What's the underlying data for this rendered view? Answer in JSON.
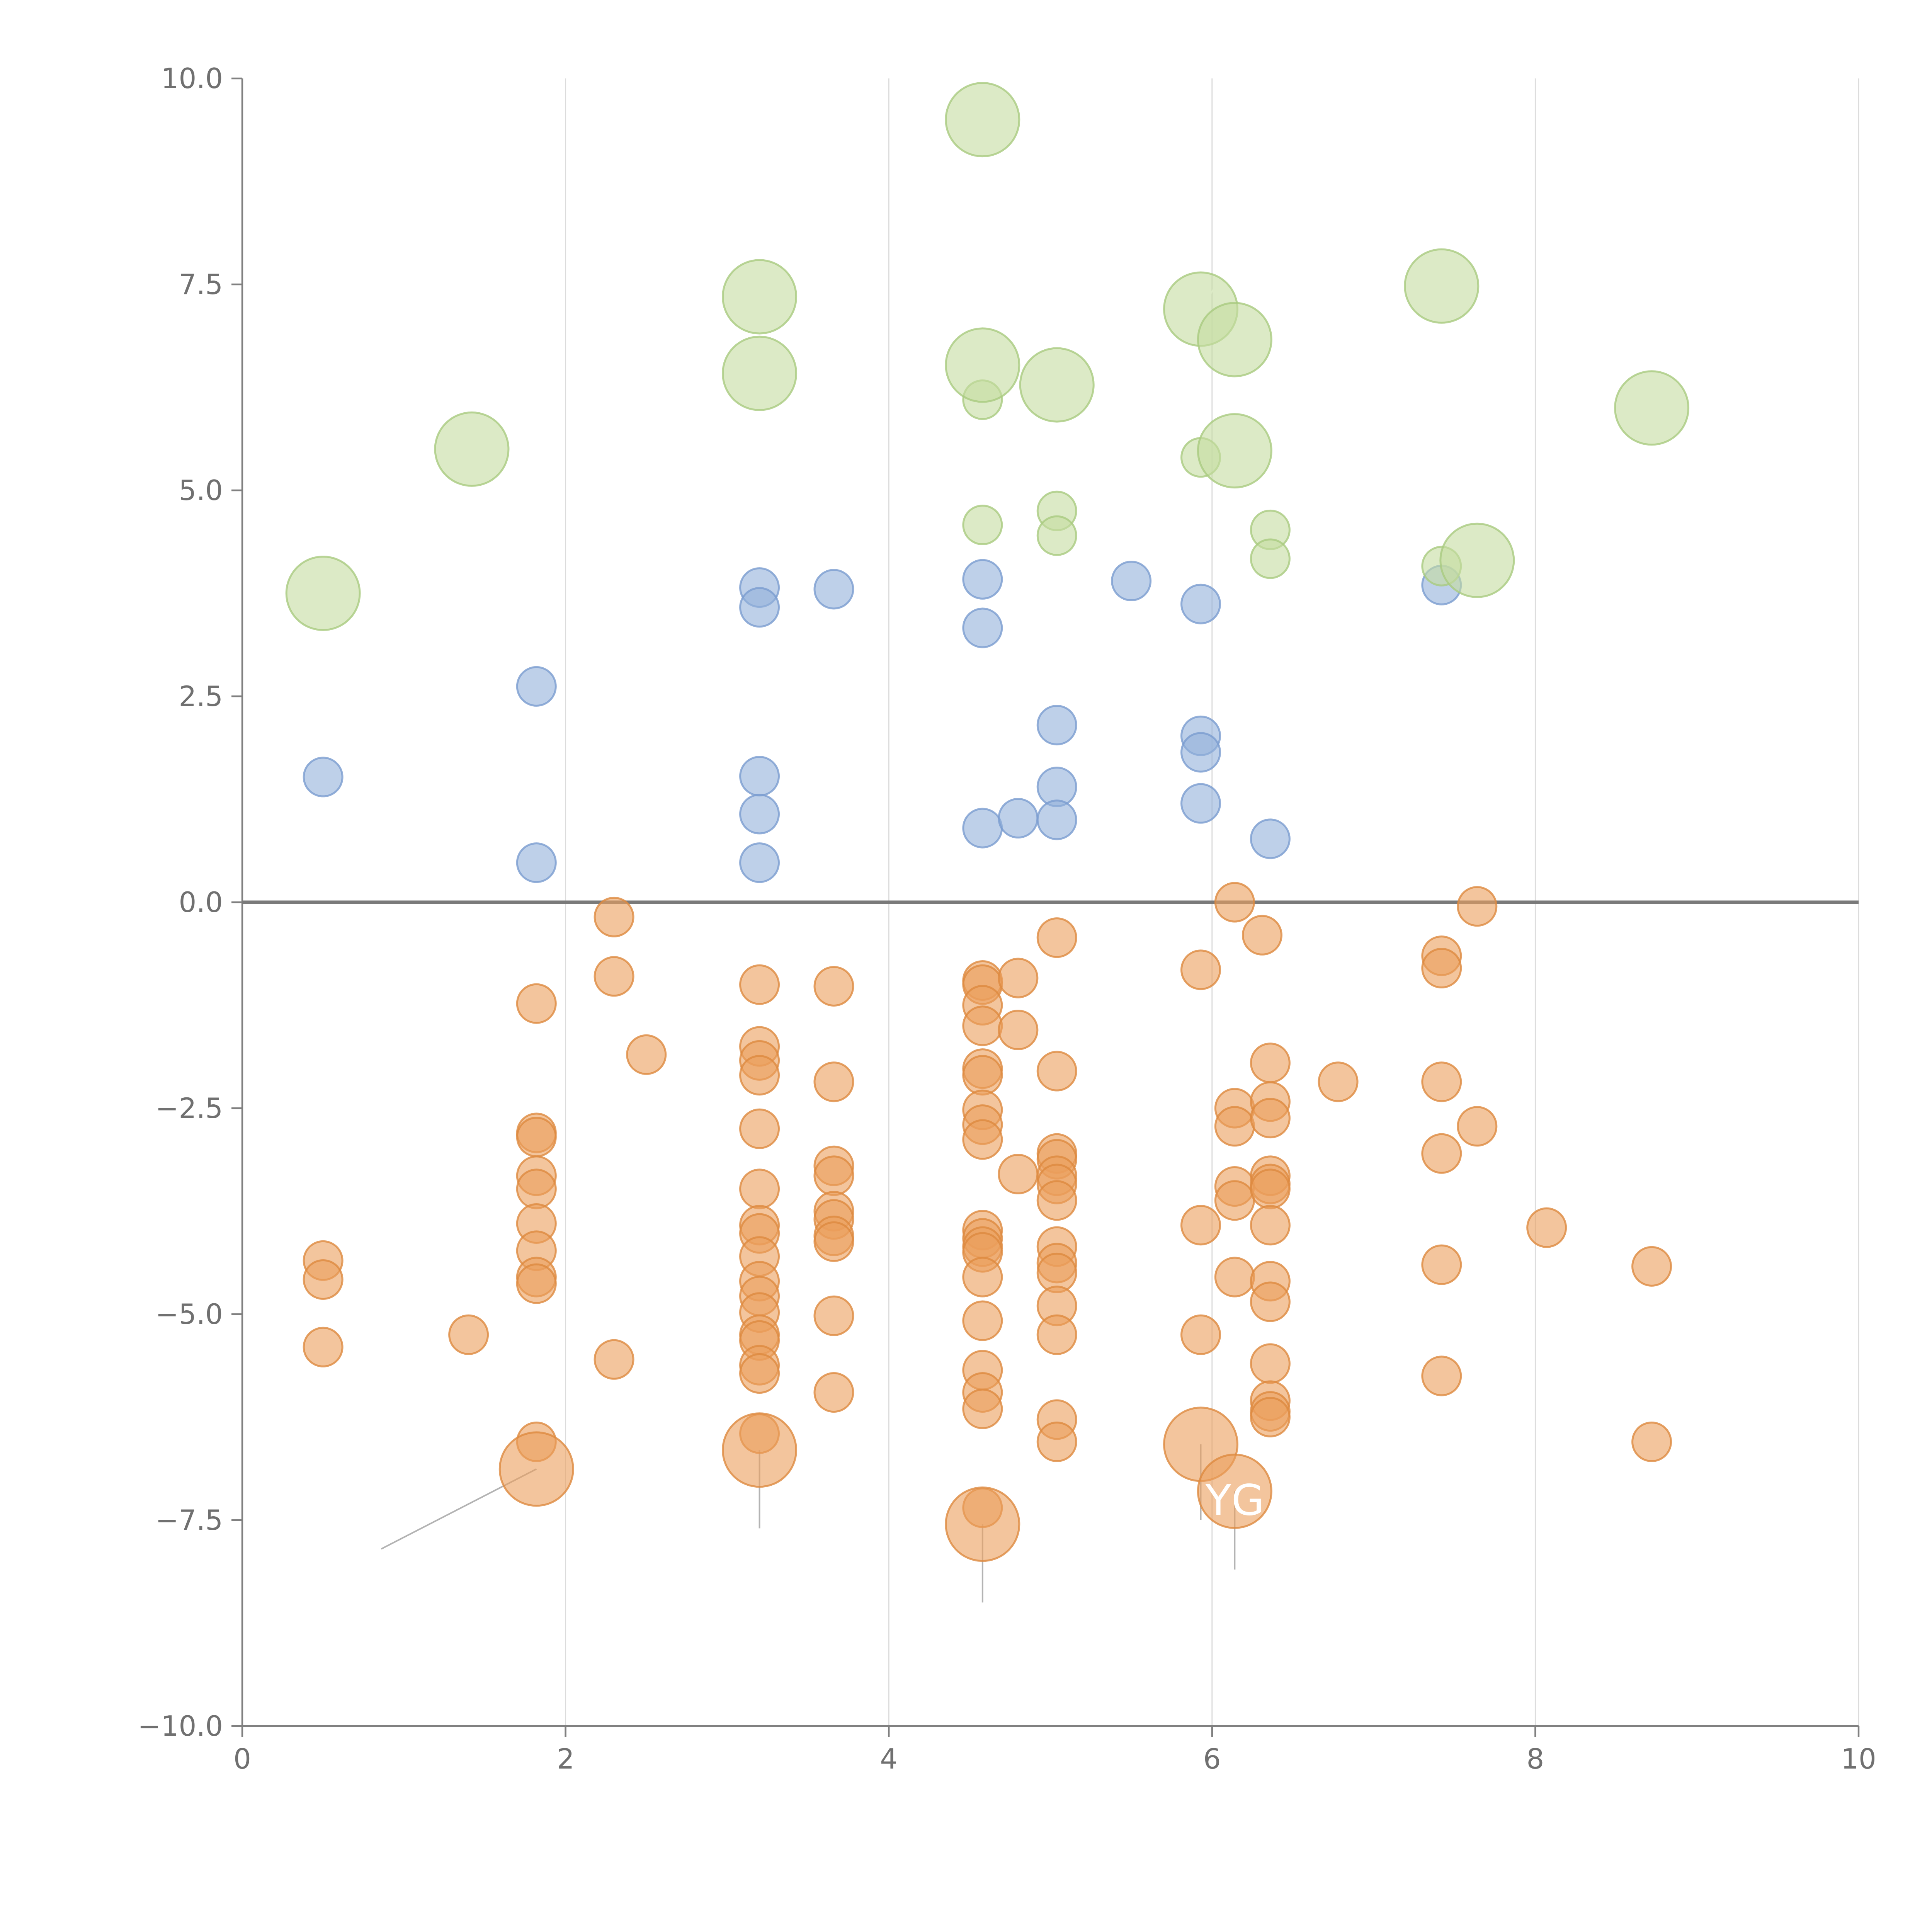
{
  "chart_data": {
    "type": "scatter",
    "title": "",
    "xlabel": "",
    "ylabel": "",
    "xlim": [
      0,
      10
    ],
    "ylim": [
      -10,
      10
    ],
    "grid": "vertical",
    "x_ticks": [
      0,
      2,
      4,
      6,
      8,
      10
    ],
    "y_ticks": [
      -10,
      -7.5,
      -5,
      -2.5,
      0,
      2.5,
      5,
      7.5,
      10
    ],
    "x_tick_labels": [
      "0",
      "2",
      "4",
      "6",
      "8",
      "10"
    ],
    "y_tick_labels": [
      "−10.0",
      "−7.5",
      "−5.0",
      "−2.5",
      "0.0",
      "2.5",
      "5.0",
      "7.5",
      "10.0"
    ],
    "reference_line_y": 0,
    "annotations": [
      {
        "text": "YG",
        "x": 6.15,
        "y": -7.25,
        "color": "#ffffff"
      }
    ],
    "series": [
      {
        "name": "orange",
        "color": "#eb9e5c",
        "stroke": "#dd8a40",
        "points": [
          [
            0.5,
            -4.35
          ],
          [
            0.5,
            -4.58
          ],
          [
            0.5,
            -5.4
          ],
          [
            1.4,
            -5.25
          ],
          [
            1.82,
            -1.23
          ],
          [
            1.82,
            -2.8
          ],
          [
            1.82,
            -2.85
          ],
          [
            1.82,
            -3.32
          ],
          [
            1.82,
            -3.48
          ],
          [
            1.82,
            -3.9
          ],
          [
            1.82,
            -4.23
          ],
          [
            1.82,
            -4.55
          ],
          [
            1.82,
            -4.63
          ],
          [
            1.82,
            -6.55
          ],
          [
            2.3,
            -0.18
          ],
          [
            2.3,
            -0.9
          ],
          [
            2.5,
            -1.85
          ],
          [
            2.3,
            -5.55
          ],
          [
            3.2,
            -1.0
          ],
          [
            3.2,
            -1.75
          ],
          [
            3.2,
            -1.92
          ],
          [
            3.2,
            -2.1
          ],
          [
            3.2,
            -2.75
          ],
          [
            3.2,
            -3.48
          ],
          [
            3.2,
            -3.92
          ],
          [
            3.2,
            -4.02
          ],
          [
            3.2,
            -4.3
          ],
          [
            3.2,
            -4.6
          ],
          [
            3.2,
            -4.78
          ],
          [
            3.2,
            -4.98
          ],
          [
            3.2,
            -5.25
          ],
          [
            3.2,
            -5.32
          ],
          [
            3.2,
            -5.62
          ],
          [
            3.2,
            -5.72
          ],
          [
            3.2,
            -6.45
          ],
          [
            3.66,
            -1.02
          ],
          [
            3.66,
            -2.18
          ],
          [
            3.66,
            -3.2
          ],
          [
            3.66,
            -3.32
          ],
          [
            3.66,
            -3.75
          ],
          [
            3.66,
            -3.85
          ],
          [
            3.66,
            -4.05
          ],
          [
            3.66,
            -4.12
          ],
          [
            3.66,
            -5.02
          ],
          [
            3.66,
            -5.95
          ],
          [
            4.58,
            -0.95
          ],
          [
            4.58,
            -1.0
          ],
          [
            4.58,
            -1.25
          ],
          [
            4.58,
            -1.5
          ],
          [
            4.58,
            -2.02
          ],
          [
            4.58,
            -2.1
          ],
          [
            4.58,
            -2.52
          ],
          [
            4.58,
            -2.7
          ],
          [
            4.58,
            -2.88
          ],
          [
            4.58,
            -3.98
          ],
          [
            4.58,
            -4.08
          ],
          [
            4.58,
            -4.18
          ],
          [
            4.58,
            -4.25
          ],
          [
            4.58,
            -4.55
          ],
          [
            4.58,
            -5.08
          ],
          [
            4.58,
            -5.68
          ],
          [
            4.58,
            -5.95
          ],
          [
            4.58,
            -6.15
          ],
          [
            4.58,
            -7.35
          ],
          [
            4.8,
            -0.92
          ],
          [
            4.8,
            -1.55
          ],
          [
            4.8,
            -3.3
          ],
          [
            5.04,
            -0.43
          ],
          [
            5.04,
            -2.05
          ],
          [
            5.04,
            -3.05
          ],
          [
            5.04,
            -3.12
          ],
          [
            5.04,
            -3.32
          ],
          [
            5.04,
            -3.42
          ],
          [
            5.04,
            -3.62
          ],
          [
            5.04,
            -4.18
          ],
          [
            5.04,
            -4.38
          ],
          [
            5.04,
            -4.5
          ],
          [
            5.04,
            -4.9
          ],
          [
            5.04,
            -5.25
          ],
          [
            5.04,
            -6.28
          ],
          [
            5.04,
            -6.55
          ],
          [
            5.93,
            -0.82
          ],
          [
            5.93,
            -3.92
          ],
          [
            5.93,
            -5.25
          ],
          [
            6.14,
            0.0
          ],
          [
            6.14,
            -2.5
          ],
          [
            6.14,
            -2.72
          ],
          [
            6.14,
            -3.45
          ],
          [
            6.14,
            -3.62
          ],
          [
            6.14,
            -4.55
          ],
          [
            6.31,
            -0.4
          ],
          [
            6.36,
            -1.95
          ],
          [
            6.36,
            -2.42
          ],
          [
            6.36,
            -2.62
          ],
          [
            6.36,
            -3.32
          ],
          [
            6.36,
            -3.42
          ],
          [
            6.36,
            -3.48
          ],
          [
            6.36,
            -3.92
          ],
          [
            6.36,
            -4.6
          ],
          [
            6.36,
            -4.85
          ],
          [
            6.36,
            -5.6
          ],
          [
            6.36,
            -6.05
          ],
          [
            6.36,
            -6.18
          ],
          [
            6.36,
            -6.25
          ],
          [
            6.78,
            -2.18
          ],
          [
            7.42,
            -0.65
          ],
          [
            7.42,
            -0.8
          ],
          [
            7.42,
            -2.18
          ],
          [
            7.42,
            -3.05
          ],
          [
            7.42,
            -4.4
          ],
          [
            7.42,
            -5.75
          ],
          [
            7.64,
            -0.05
          ],
          [
            7.64,
            -2.72
          ],
          [
            8.07,
            -3.95
          ],
          [
            8.72,
            -4.42
          ],
          [
            8.72,
            -6.55
          ]
        ],
        "large_points": [
          [
            1.82,
            -6.88
          ],
          [
            3.2,
            -6.65
          ],
          [
            4.58,
            -7.55
          ],
          [
            5.93,
            -6.58
          ],
          [
            6.14,
            -7.15
          ]
        ]
      },
      {
        "name": "blue",
        "color": "#93b0da",
        "stroke": "#7a9cd0",
        "points": [
          [
            0.5,
            1.52
          ],
          [
            1.82,
            2.62
          ],
          [
            1.82,
            0.48
          ],
          [
            3.2,
            3.82
          ],
          [
            3.2,
            3.58
          ],
          [
            3.2,
            1.53
          ],
          [
            3.2,
            1.07
          ],
          [
            3.2,
            0.48
          ],
          [
            3.66,
            3.8
          ],
          [
            4.58,
            3.92
          ],
          [
            4.58,
            3.33
          ],
          [
            4.58,
            0.9
          ],
          [
            4.8,
            1.02
          ],
          [
            5.04,
            2.15
          ],
          [
            5.04,
            1.4
          ],
          [
            5.04,
            1.0
          ],
          [
            5.5,
            3.9
          ],
          [
            5.93,
            3.62
          ],
          [
            5.93,
            2.02
          ],
          [
            5.93,
            1.82
          ],
          [
            5.93,
            1.2
          ],
          [
            6.36,
            0.77
          ],
          [
            7.42,
            3.85
          ]
        ]
      },
      {
        "name": "green",
        "color": "#c4dca0",
        "stroke": "#a9cb80",
        "points": [
          [
            4.58,
            6.1
          ],
          [
            5.04,
            4.75
          ],
          [
            5.04,
            4.45
          ],
          [
            4.58,
            4.58
          ],
          [
            5.93,
            5.4
          ],
          [
            6.36,
            4.52
          ],
          [
            6.36,
            4.17
          ],
          [
            7.42,
            4.08
          ]
        ],
        "large_points": [
          [
            0.5,
            3.75
          ],
          [
            1.42,
            5.5
          ],
          [
            3.2,
            7.35
          ],
          [
            3.2,
            6.42
          ],
          [
            4.58,
            9.5
          ],
          [
            4.58,
            6.52
          ],
          [
            5.04,
            6.28
          ],
          [
            5.93,
            7.2
          ],
          [
            6.14,
            6.83
          ],
          [
            6.14,
            5.48
          ],
          [
            7.42,
            7.48
          ],
          [
            7.64,
            4.15
          ],
          [
            8.72,
            6.0
          ]
        ]
      }
    ]
  }
}
